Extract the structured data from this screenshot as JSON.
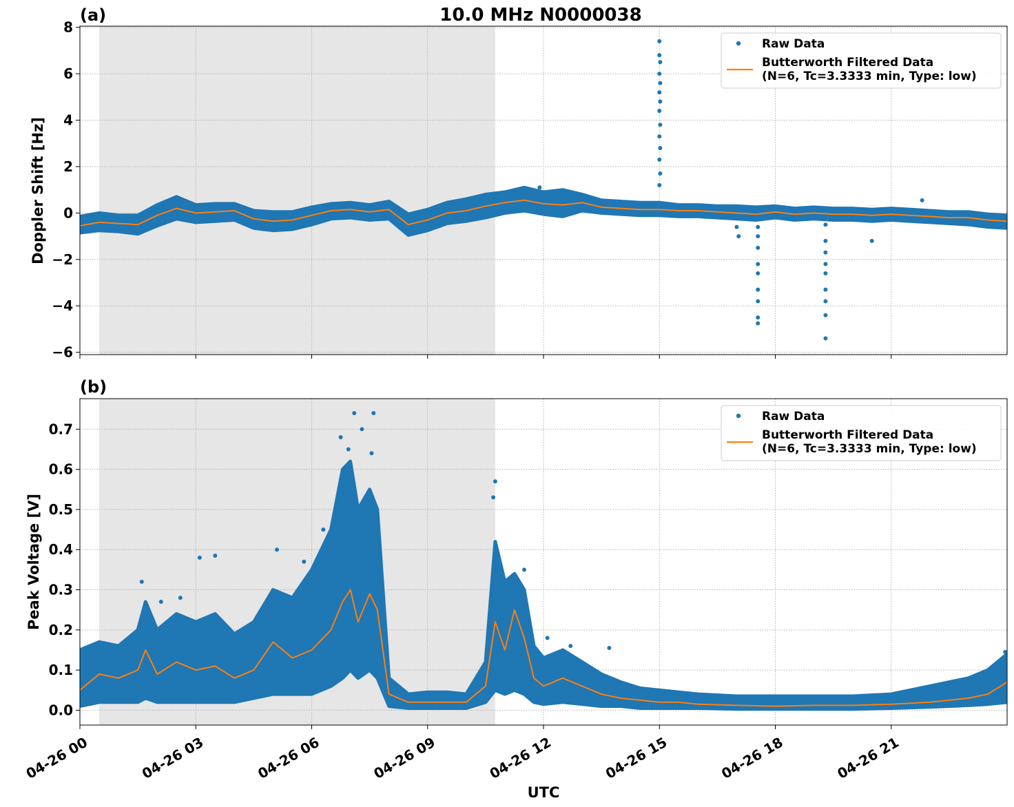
{
  "figure": {
    "title": "10.0 MHz N0000038",
    "xlabel": "UTC"
  },
  "colors": {
    "raw": "#1f77b4",
    "filtered": "#ff7f0e",
    "shade": "#e6e6e6",
    "grid": "#b0b0b0"
  },
  "legend": {
    "raw_label": "Raw Data",
    "filtered_label_line1": "Butterworth Filtered Data",
    "filtered_label_line2": "(N=6, Tc=3.3333 min, Type: low)",
    "placement": "top-right"
  },
  "chart_data": [
    {
      "panel_label": "(a)",
      "type": "scatter",
      "ylabel": "Doppler Shift [Hz]",
      "xlim_hours": [
        0,
        24
      ],
      "ylim": [
        -6.1,
        8.05
      ],
      "y_ticks": [
        -6,
        -4,
        -2,
        0,
        2,
        4,
        6,
        8
      ],
      "y_tick_labels": [
        "−6",
        "−4",
        "−2",
        "0",
        "2",
        "4",
        "6",
        "8"
      ],
      "x_ticks_hours": [
        0,
        3,
        6,
        9,
        12,
        15,
        18,
        21
      ],
      "x_tick_labels": [
        "04-26 00",
        "04-26 03",
        "04-26 06",
        "04-26 09",
        "04-26 12",
        "04-26 15",
        "04-26 18",
        "04-26 21"
      ],
      "shaded_interval_hours": [
        0.5,
        10.75
      ],
      "grid": true,
      "series": [
        {
          "name": "Butterworth Filtered Data",
          "kind": "line",
          "x_hours": [
            0,
            0.5,
            1.0,
            1.5,
            2.0,
            2.5,
            3.0,
            3.5,
            4.0,
            4.5,
            5.0,
            5.5,
            6.0,
            6.5,
            7.0,
            7.5,
            8.0,
            8.5,
            9.0,
            9.5,
            10.0,
            10.5,
            11.0,
            11.5,
            12.0,
            12.5,
            13.0,
            13.5,
            14.0,
            14.5,
            15.0,
            15.5,
            16.0,
            16.5,
            17.0,
            17.5,
            18.0,
            18.5,
            19.0,
            19.5,
            20.0,
            20.5,
            21.0,
            21.5,
            22.0,
            22.5,
            23.0,
            23.5,
            24.0
          ],
          "values": [
            -0.55,
            -0.4,
            -0.45,
            -0.5,
            -0.1,
            0.2,
            0.0,
            0.05,
            0.1,
            -0.25,
            -0.35,
            -0.3,
            -0.1,
            0.1,
            0.15,
            0.05,
            0.15,
            -0.5,
            -0.3,
            0.0,
            0.1,
            0.3,
            0.45,
            0.55,
            0.4,
            0.35,
            0.45,
            0.25,
            0.2,
            0.15,
            0.15,
            0.1,
            0.1,
            0.05,
            0.0,
            -0.05,
            0.05,
            -0.05,
            0.0,
            -0.05,
            -0.05,
            -0.1,
            -0.05,
            -0.1,
            -0.15,
            -0.2,
            -0.2,
            -0.3,
            -0.35
          ]
        },
        {
          "name": "Raw Data",
          "kind": "band",
          "x_hours": [
            0,
            0.5,
            1.0,
            1.5,
            2.0,
            2.5,
            3.0,
            3.5,
            4.0,
            4.5,
            5.0,
            5.5,
            6.0,
            6.5,
            7.0,
            7.5,
            8.0,
            8.5,
            9.0,
            9.5,
            10.0,
            10.5,
            11.0,
            11.5,
            12.0,
            12.5,
            13.0,
            13.5,
            14.0,
            14.5,
            15.0,
            15.5,
            16.0,
            16.5,
            17.0,
            17.5,
            18.0,
            18.5,
            19.0,
            19.5,
            20.0,
            20.5,
            21.0,
            21.5,
            22.0,
            22.5,
            23.0,
            23.5,
            24.0
          ],
          "upper": [
            -0.15,
            0.0,
            -0.1,
            -0.1,
            0.35,
            0.7,
            0.35,
            0.4,
            0.4,
            0.1,
            0.05,
            0.05,
            0.25,
            0.4,
            0.45,
            0.35,
            0.5,
            -0.05,
            0.15,
            0.45,
            0.6,
            0.8,
            0.9,
            1.1,
            0.9,
            1.0,
            0.8,
            0.55,
            0.5,
            0.45,
            0.45,
            0.35,
            0.35,
            0.3,
            0.3,
            0.25,
            0.3,
            0.2,
            0.25,
            0.2,
            0.2,
            0.15,
            0.2,
            0.15,
            0.1,
            0.05,
            0.05,
            -0.05,
            -0.1
          ],
          "lower": [
            -0.85,
            -0.75,
            -0.8,
            -0.9,
            -0.55,
            -0.25,
            -0.4,
            -0.35,
            -0.3,
            -0.65,
            -0.75,
            -0.7,
            -0.5,
            -0.25,
            -0.2,
            -0.3,
            -0.25,
            -0.95,
            -0.75,
            -0.45,
            -0.35,
            -0.2,
            0.0,
            0.1,
            -0.05,
            -0.15,
            0.1,
            0.0,
            -0.05,
            -0.1,
            -0.1,
            -0.15,
            -0.15,
            -0.2,
            -0.25,
            -0.3,
            -0.2,
            -0.3,
            -0.25,
            -0.3,
            -0.3,
            -0.35,
            -0.3,
            -0.35,
            -0.4,
            -0.45,
            -0.5,
            -0.6,
            -0.65
          ]
        },
        {
          "name": "Raw Data",
          "kind": "outliers",
          "points": [
            [
              15.0,
              7.4
            ],
            [
              15.0,
              6.8
            ],
            [
              15.02,
              6.5
            ],
            [
              15.0,
              6.0
            ],
            [
              15.02,
              5.6
            ],
            [
              15.0,
              5.2
            ],
            [
              15.02,
              4.8
            ],
            [
              15.0,
              4.4
            ],
            [
              15.02,
              3.8
            ],
            [
              15.0,
              3.3
            ],
            [
              15.02,
              2.8
            ],
            [
              15.0,
              2.3
            ],
            [
              15.02,
              1.7
            ],
            [
              15.0,
              1.2
            ],
            [
              17.55,
              -0.6
            ],
            [
              17.55,
              -1.0
            ],
            [
              17.55,
              -1.5
            ],
            [
              17.55,
              -2.2
            ],
            [
              17.55,
              -2.6
            ],
            [
              17.55,
              -3.3
            ],
            [
              17.55,
              -3.8
            ],
            [
              17.55,
              -4.5
            ],
            [
              17.55,
              -4.75
            ],
            [
              17.0,
              -0.6
            ],
            [
              17.05,
              -1.0
            ],
            [
              19.3,
              -0.5
            ],
            [
              19.3,
              -1.2
            ],
            [
              19.3,
              -1.7
            ],
            [
              19.3,
              -2.2
            ],
            [
              19.3,
              -2.6
            ],
            [
              19.3,
              -3.3
            ],
            [
              19.3,
              -3.8
            ],
            [
              19.3,
              -4.4
            ],
            [
              19.3,
              -5.4
            ],
            [
              20.5,
              -1.2
            ],
            [
              21.8,
              0.55
            ],
            [
              11.9,
              1.1
            ]
          ]
        }
      ]
    },
    {
      "panel_label": "(b)",
      "type": "scatter",
      "ylabel": "Peak Voltage [V]",
      "xlim_hours": [
        0,
        24
      ],
      "ylim": [
        -0.037,
        0.776
      ],
      "y_ticks": [
        0.0,
        0.1,
        0.2,
        0.3,
        0.4,
        0.5,
        0.6,
        0.7
      ],
      "y_tick_labels": [
        "0.0",
        "0.1",
        "0.2",
        "0.3",
        "0.4",
        "0.5",
        "0.6",
        "0.7"
      ],
      "x_ticks_hours": [
        0,
        3,
        6,
        9,
        12,
        15,
        18,
        21
      ],
      "x_tick_labels": [
        "04-26 00",
        "04-26 03",
        "04-26 06",
        "04-26 09",
        "04-26 12",
        "04-26 15",
        "04-26 18",
        "04-26 21"
      ],
      "shaded_interval_hours": [
        0.5,
        10.75
      ],
      "grid": true,
      "series": [
        {
          "name": "Butterworth Filtered Data",
          "kind": "line",
          "x_hours": [
            0,
            0.5,
            1.0,
            1.5,
            1.7,
            2.0,
            2.5,
            3.0,
            3.5,
            4.0,
            4.5,
            5.0,
            5.5,
            6.0,
            6.5,
            6.8,
            7.0,
            7.2,
            7.5,
            7.7,
            8.0,
            8.5,
            9.0,
            9.5,
            10.0,
            10.5,
            10.75,
            11.0,
            11.25,
            11.5,
            11.75,
            12.0,
            12.5,
            13.0,
            13.5,
            14.0,
            14.5,
            15.0,
            15.5,
            16.0,
            17.0,
            18.0,
            19.0,
            20.0,
            21.0,
            22.0,
            22.5,
            23.0,
            23.5,
            24.0
          ],
          "values": [
            0.05,
            0.09,
            0.08,
            0.1,
            0.15,
            0.09,
            0.12,
            0.1,
            0.11,
            0.08,
            0.1,
            0.17,
            0.13,
            0.15,
            0.2,
            0.27,
            0.3,
            0.22,
            0.29,
            0.25,
            0.04,
            0.02,
            0.02,
            0.02,
            0.02,
            0.06,
            0.22,
            0.15,
            0.25,
            0.18,
            0.08,
            0.06,
            0.08,
            0.06,
            0.04,
            0.03,
            0.025,
            0.02,
            0.02,
            0.015,
            0.012,
            0.01,
            0.012,
            0.012,
            0.015,
            0.02,
            0.025,
            0.03,
            0.04,
            0.07
          ]
        },
        {
          "name": "Raw Data",
          "kind": "band",
          "x_hours": [
            0,
            0.5,
            1.0,
            1.5,
            1.7,
            2.0,
            2.5,
            3.0,
            3.5,
            4.0,
            4.5,
            5.0,
            5.5,
            6.0,
            6.5,
            6.8,
            7.0,
            7.2,
            7.5,
            7.7,
            8.0,
            8.5,
            9.0,
            9.5,
            10.0,
            10.5,
            10.75,
            11.0,
            11.25,
            11.5,
            11.75,
            12.0,
            12.5,
            13.0,
            13.5,
            14.0,
            14.5,
            15.0,
            15.5,
            16.0,
            17.0,
            18.0,
            19.0,
            20.0,
            21.0,
            22.0,
            22.5,
            23.0,
            23.5,
            24.0
          ],
          "upper": [
            0.15,
            0.17,
            0.16,
            0.2,
            0.27,
            0.2,
            0.24,
            0.22,
            0.24,
            0.19,
            0.22,
            0.3,
            0.28,
            0.35,
            0.45,
            0.6,
            0.62,
            0.5,
            0.55,
            0.5,
            0.08,
            0.04,
            0.045,
            0.045,
            0.04,
            0.12,
            0.42,
            0.32,
            0.34,
            0.3,
            0.16,
            0.13,
            0.15,
            0.12,
            0.09,
            0.07,
            0.055,
            0.05,
            0.045,
            0.04,
            0.035,
            0.035,
            0.035,
            0.035,
            0.04,
            0.06,
            0.07,
            0.08,
            0.1,
            0.14
          ],
          "lower": [
            0.01,
            0.02,
            0.02,
            0.02,
            0.03,
            0.02,
            0.02,
            0.02,
            0.02,
            0.02,
            0.03,
            0.04,
            0.04,
            0.04,
            0.06,
            0.08,
            0.1,
            0.08,
            0.1,
            0.08,
            0.01,
            0.005,
            0.005,
            0.005,
            0.005,
            0.02,
            0.05,
            0.04,
            0.05,
            0.04,
            0.02,
            0.015,
            0.02,
            0.015,
            0.01,
            0.01,
            0.005,
            0.005,
            0.005,
            0.005,
            0.003,
            0.003,
            0.003,
            0.003,
            0.005,
            0.008,
            0.01,
            0.012,
            0.015,
            0.02
          ]
        },
        {
          "name": "Raw Data",
          "kind": "outliers",
          "points": [
            [
              1.6,
              0.32
            ],
            [
              2.1,
              0.27
            ],
            [
              2.6,
              0.28
            ],
            [
              3.1,
              0.38
            ],
            [
              3.5,
              0.385
            ],
            [
              5.1,
              0.4
            ],
            [
              5.8,
              0.37
            ],
            [
              6.3,
              0.45
            ],
            [
              6.75,
              0.68
            ],
            [
              6.95,
              0.65
            ],
            [
              7.1,
              0.74
            ],
            [
              7.3,
              0.7
            ],
            [
              7.6,
              0.74
            ],
            [
              7.55,
              0.64
            ],
            [
              10.75,
              0.57
            ],
            [
              10.7,
              0.53
            ],
            [
              11.5,
              0.35
            ],
            [
              12.1,
              0.18
            ],
            [
              12.7,
              0.16
            ],
            [
              13.7,
              0.155
            ],
            [
              23.95,
              0.145
            ]
          ]
        }
      ]
    }
  ]
}
